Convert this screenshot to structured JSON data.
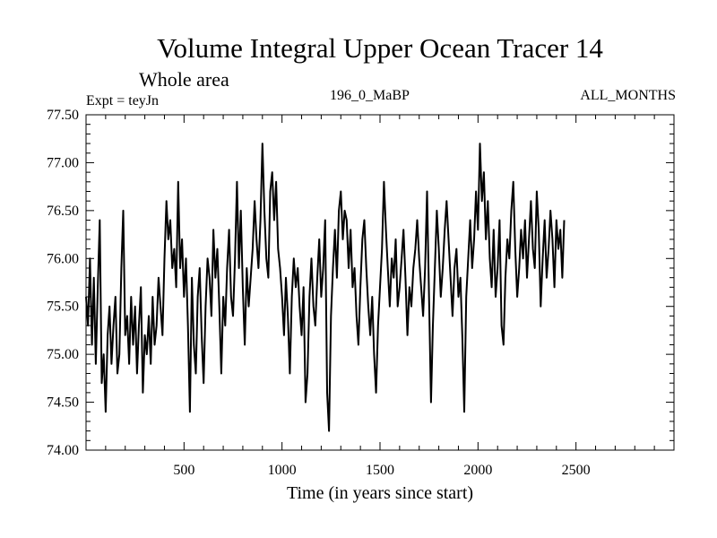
{
  "chart_data": {
    "type": "line",
    "title": "Volume Integral Upper Ocean Tracer 14",
    "subtitle": "Whole area",
    "experiment_label": "Expt = teyJn",
    "run_label": "196_0_MaBP",
    "months_label": "ALL_MONTHS",
    "xlabel": "Time (in years since start)",
    "ylabel": "",
    "xlim": [
      0,
      3000
    ],
    "ylim": [
      74.0,
      77.5
    ],
    "x_ticks": [
      500,
      1000,
      1500,
      2000,
      2500
    ],
    "x_tick_labels": [
      "500",
      "1000",
      "1500",
      "2000",
      "2500"
    ],
    "y_ticks": [
      74.0,
      74.5,
      75.0,
      75.5,
      76.0,
      76.5,
      77.0,
      77.5
    ],
    "y_tick_labels": [
      "74.00",
      "74.50",
      "75.00",
      "75.50",
      "76.00",
      "76.50",
      "77.00",
      "77.50"
    ],
    "grid": false,
    "series": [
      {
        "name": "Volume Integral Upper Ocean Tracer 14",
        "step_years": 10,
        "x_start": 0,
        "color": "#000000",
        "values": [
          75.6,
          75.3,
          76.0,
          75.1,
          75.8,
          74.9,
          75.7,
          76.4,
          74.7,
          75.0,
          74.4,
          75.2,
          75.5,
          74.9,
          75.3,
          75.6,
          74.8,
          75.0,
          75.9,
          76.5,
          75.2,
          75.4,
          74.9,
          75.6,
          75.1,
          75.5,
          74.8,
          75.3,
          75.7,
          74.6,
          75.2,
          75.0,
          75.4,
          74.9,
          75.6,
          75.1,
          75.3,
          75.8,
          75.5,
          75.2,
          76.0,
          76.6,
          76.2,
          76.4,
          75.9,
          76.1,
          75.7,
          76.8,
          75.9,
          76.2,
          75.6,
          76.0,
          75.3,
          74.4,
          75.8,
          75.1,
          74.8,
          75.6,
          75.9,
          75.2,
          74.7,
          75.5,
          76.0,
          75.8,
          75.4,
          76.3,
          75.8,
          76.1,
          75.5,
          74.8,
          75.6,
          75.3,
          75.9,
          76.3,
          75.6,
          75.4,
          76.0,
          76.8,
          75.9,
          76.5,
          75.7,
          75.1,
          75.9,
          75.5,
          75.8,
          76.1,
          76.6,
          76.2,
          75.9,
          76.4,
          77.2,
          76.5,
          76.0,
          75.8,
          76.7,
          76.9,
          76.4,
          76.8,
          76.1,
          75.9,
          75.6,
          75.2,
          75.8,
          75.4,
          74.8,
          75.6,
          76.0,
          75.7,
          75.9,
          75.5,
          75.2,
          75.7,
          74.5,
          74.8,
          75.6,
          76.0,
          75.5,
          75.3,
          75.8,
          76.2,
          75.6,
          75.9,
          76.4,
          74.6,
          74.2,
          75.4,
          75.9,
          76.3,
          75.8,
          76.5,
          76.7,
          76.2,
          76.5,
          76.4,
          75.9,
          76.3,
          75.7,
          75.9,
          75.4,
          75.1,
          75.7,
          76.2,
          76.4,
          75.9,
          75.5,
          75.2,
          75.6,
          75.0,
          74.6,
          75.3,
          75.7,
          76.1,
          76.8,
          76.3,
          75.9,
          75.5,
          76.0,
          75.8,
          76.2,
          75.5,
          75.7,
          76.0,
          76.3,
          75.8,
          75.2,
          75.7,
          75.5,
          75.9,
          76.1,
          76.4,
          76.0,
          75.7,
          75.4,
          75.9,
          76.7,
          75.6,
          74.5,
          75.3,
          75.9,
          76.5,
          76.1,
          75.6,
          75.9,
          76.3,
          76.6,
          76.2,
          75.8,
          75.4,
          75.9,
          76.1,
          75.6,
          75.8,
          75.2,
          74.4,
          75.6,
          76.0,
          76.4,
          75.9,
          76.2,
          76.7,
          76.3,
          77.2,
          76.6,
          76.9,
          76.2,
          76.6,
          76.0,
          75.7,
          76.3,
          75.6,
          75.9,
          76.4,
          75.3,
          75.1,
          75.8,
          76.2,
          76.0,
          76.5,
          76.8,
          76.1,
          75.6,
          75.9,
          76.3,
          76.0,
          76.4,
          75.8,
          76.2,
          76.6,
          76.1,
          75.9,
          76.7,
          76.3,
          75.5,
          76.0,
          76.4,
          75.8,
          76.1,
          76.5,
          76.2,
          75.7,
          76.4,
          76.1,
          76.3,
          75.8,
          76.4
        ]
      }
    ]
  }
}
